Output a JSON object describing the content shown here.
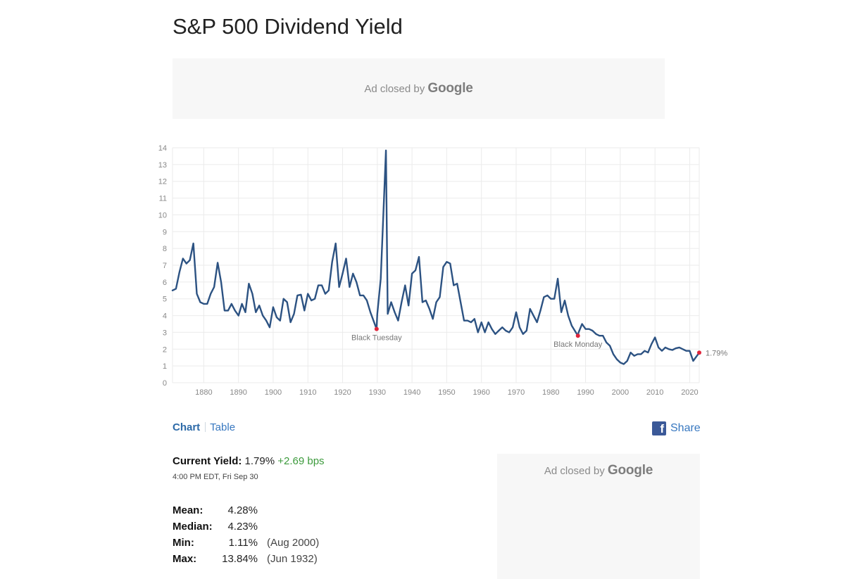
{
  "page": {
    "title": "S&P 500 Dividend Yield"
  },
  "ads": {
    "top": {
      "prefix": "Ad closed by",
      "brand": "Google"
    },
    "side": {
      "prefix": "Ad closed by",
      "brand": "Google"
    }
  },
  "view_tabs": {
    "chart": "Chart",
    "table": "Table",
    "active": "chart"
  },
  "share": {
    "icon": "facebook-icon",
    "label": "Share"
  },
  "current": {
    "label": "Current Yield:",
    "value": "1.79%",
    "change": "+2.69 bps",
    "timestamp": "4:00 PM EDT, Fri Sep 30"
  },
  "stats": [
    {
      "label": "Mean:",
      "value": "4.28%",
      "date": ""
    },
    {
      "label": "Median:",
      "value": "4.23%",
      "date": ""
    },
    {
      "label": "Min:",
      "value": "1.11%",
      "date": "(Aug 2000)"
    },
    {
      "label": "Max:",
      "value": "13.84%",
      "date": "(Jun 1932)"
    }
  ],
  "colors": {
    "line": "#2c5282",
    "marker": "#e0243a",
    "grid": "#ebebeb",
    "change_positive": "#3c9a3c",
    "link": "#3878c0"
  },
  "chart_data": {
    "type": "line",
    "title": "",
    "xlabel": "",
    "ylabel": "",
    "xlim": [
      1871,
      2022.75
    ],
    "ylim": [
      0,
      14
    ],
    "xticks": [
      1880,
      1890,
      1900,
      1910,
      1920,
      1930,
      1940,
      1950,
      1960,
      1970,
      1980,
      1990,
      2000,
      2010,
      2020
    ],
    "yticks": [
      0,
      1,
      2,
      3,
      4,
      5,
      6,
      7,
      8,
      9,
      10,
      11,
      12,
      13,
      14
    ],
    "grid": true,
    "legend": "none",
    "series": [
      {
        "x": [
          1871,
          1872,
          1873,
          1874,
          1875,
          1876,
          1877,
          1878,
          1879,
          1880,
          1881,
          1882,
          1883,
          1884,
          1885,
          1886,
          1887,
          1888,
          1889,
          1890,
          1891,
          1892,
          1893,
          1894,
          1895,
          1896,
          1897,
          1898,
          1899,
          1900,
          1901,
          1902,
          1903,
          1904,
          1905,
          1906,
          1907,
          1908,
          1909,
          1910,
          1911,
          1912,
          1913,
          1914,
          1915,
          1916,
          1917,
          1918,
          1919,
          1920,
          1921,
          1922,
          1923,
          1924,
          1925,
          1926,
          1927,
          1928,
          1929.8,
          1930,
          1931,
          1932.5,
          1933,
          1934,
          1935,
          1936,
          1937,
          1938,
          1939,
          1940,
          1941,
          1942,
          1943,
          1944,
          1945,
          1946,
          1947,
          1948,
          1949,
          1950,
          1951,
          1952,
          1953,
          1954,
          1955,
          1956,
          1957,
          1958,
          1959,
          1960,
          1961,
          1962,
          1963,
          1964,
          1965,
          1966,
          1967,
          1968,
          1969,
          1970,
          1971,
          1972,
          1973,
          1974,
          1975,
          1976,
          1977,
          1978,
          1979,
          1980,
          1981,
          1982,
          1983,
          1984,
          1985,
          1986,
          1987.8,
          1988,
          1989,
          1990,
          1991,
          1992,
          1993,
          1994,
          1995,
          1996,
          1997,
          1998,
          1999,
          2000,
          2001,
          2002,
          2003,
          2004,
          2005,
          2006,
          2007,
          2008,
          2009,
          2010,
          2011,
          2012,
          2013,
          2014,
          2015,
          2016,
          2017,
          2018,
          2019,
          2020,
          2021,
          2022.75
        ],
        "y": [
          5.5,
          5.6,
          6.6,
          7.4,
          7.1,
          7.3,
          8.3,
          5.3,
          4.8,
          4.7,
          4.7,
          5.3,
          5.7,
          7.15,
          6.0,
          4.3,
          4.3,
          4.7,
          4.3,
          4.0,
          4.7,
          4.2,
          5.9,
          5.3,
          4.2,
          4.6,
          4.0,
          3.7,
          3.3,
          4.5,
          3.9,
          3.7,
          5.0,
          4.8,
          3.6,
          4.1,
          5.2,
          5.25,
          4.3,
          5.3,
          4.9,
          5.0,
          5.8,
          5.8,
          5.3,
          5.5,
          7.2,
          8.3,
          5.7,
          6.5,
          7.4,
          5.7,
          6.5,
          6.0,
          5.2,
          5.2,
          4.9,
          4.2,
          3.2,
          4.1,
          6.2,
          13.84,
          4.1,
          4.8,
          4.2,
          3.7,
          4.8,
          5.8,
          4.6,
          6.5,
          6.7,
          7.5,
          4.8,
          4.9,
          4.4,
          3.8,
          4.8,
          5.1,
          6.9,
          7.2,
          7.1,
          5.8,
          5.9,
          4.8,
          3.7,
          3.7,
          3.6,
          3.8,
          3.0,
          3.6,
          3.0,
          3.6,
          3.2,
          2.9,
          3.1,
          3.3,
          3.1,
          3.0,
          3.3,
          4.2,
          3.3,
          2.9,
          3.1,
          4.4,
          4.0,
          3.6,
          4.3,
          5.1,
          5.2,
          5.0,
          5.0,
          6.2,
          4.2,
          4.9,
          4.0,
          3.4,
          2.8,
          3.0,
          3.5,
          3.2,
          3.2,
          3.1,
          2.9,
          2.8,
          2.8,
          2.4,
          2.2,
          1.7,
          1.4,
          1.2,
          1.11,
          1.3,
          1.8,
          1.6,
          1.7,
          1.7,
          1.9,
          1.8,
          2.3,
          2.7,
          2.1,
          1.9,
          2.1,
          2.0,
          1.95,
          2.05,
          2.1,
          2.0,
          1.9,
          1.9,
          1.3,
          1.79
        ]
      }
    ],
    "annotations": [
      {
        "label": "Black Tuesday",
        "x": 1929.8,
        "y": 3.2
      },
      {
        "label": "Black Monday",
        "x": 1987.8,
        "y": 2.8
      },
      {
        "label": "1.79%",
        "x": 2022.75,
        "y": 1.79
      }
    ]
  }
}
